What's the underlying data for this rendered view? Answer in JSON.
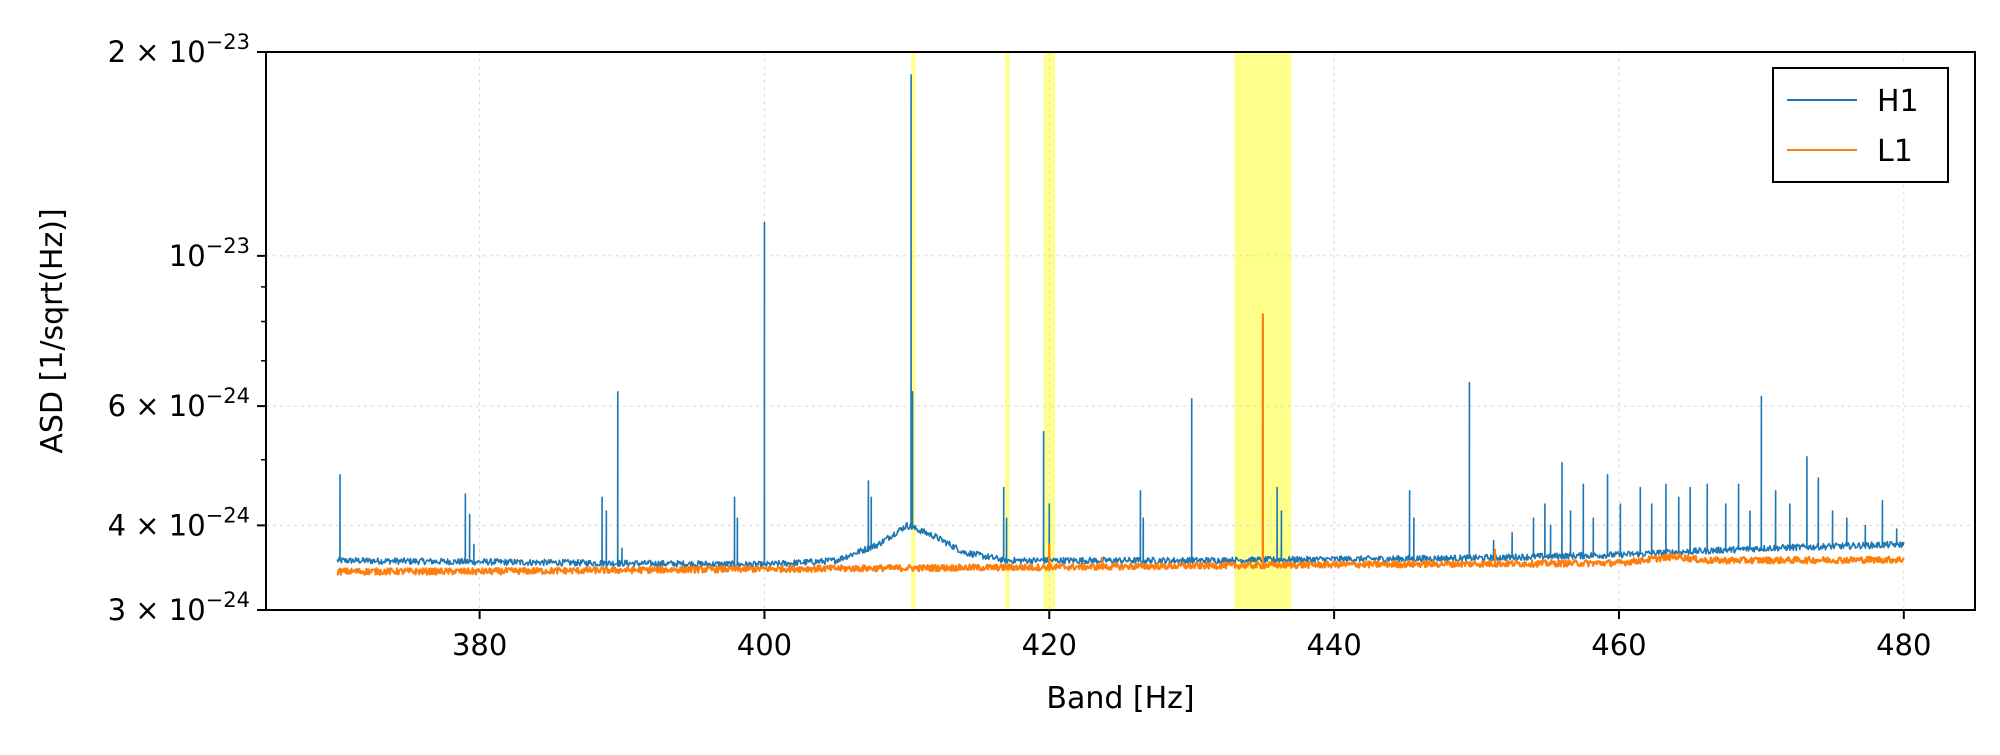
{
  "chart_data": {
    "type": "line",
    "xlabel": "Band [Hz]",
    "ylabel": "ASD [1/sqrt(Hz)]",
    "xlim": [
      365,
      485
    ],
    "ylim": [
      3e-24,
      2e-23
    ],
    "yscale": "log",
    "grid": true,
    "legend_position": "top-right",
    "x_ticks": [
      380,
      400,
      420,
      440,
      460,
      480
    ],
    "x_tick_labels": [
      "380",
      "400",
      "420",
      "440",
      "460",
      "480"
    ],
    "y_ticks": [
      {
        "value": 2e-23,
        "mantissa": "2",
        "times": "×",
        "base": "10",
        "exponent": "−23"
      },
      {
        "value": 1e-23,
        "mantissa": "",
        "times": "",
        "base": "10",
        "exponent": "−23"
      },
      {
        "value": 6e-24,
        "mantissa": "6",
        "times": "×",
        "base": "10",
        "exponent": "−24"
      },
      {
        "value": 4e-24,
        "mantissa": "4",
        "times": "×",
        "base": "10",
        "exponent": "−24"
      },
      {
        "value": 3e-24,
        "mantissa": "3",
        "times": "×",
        "base": "10",
        "exponent": "−24"
      }
    ],
    "y_minor_ticks": [
      5e-24,
      7e-24,
      8e-24,
      9e-24
    ],
    "highlight_bands": [
      {
        "x0": 410.3,
        "x1": 410.6
      },
      {
        "x0": 416.9,
        "x1": 417.2
      },
      {
        "x0": 419.6,
        "x1": 420.4
      },
      {
        "x0": 433.0,
        "x1": 437.0
      }
    ],
    "series": [
      {
        "name": "H1",
        "color": "#1f77b4",
        "x_range": [
          370,
          480
        ],
        "baseline": [
          [
            370,
            3.55e-24
          ],
          [
            400,
            3.5e-24
          ],
          [
            405,
            3.55e-24
          ],
          [
            408,
            3.75e-24
          ],
          [
            410,
            4e-24
          ],
          [
            412,
            3.85e-24
          ],
          [
            414,
            3.65e-24
          ],
          [
            417,
            3.55e-24
          ],
          [
            430,
            3.55e-24
          ],
          [
            450,
            3.58e-24
          ],
          [
            460,
            3.62e-24
          ],
          [
            470,
            3.7e-24
          ],
          [
            480,
            3.75e-24
          ]
        ],
        "peaks": [
          [
            370.2,
            4.75e-24
          ],
          [
            379.0,
            4.45e-24
          ],
          [
            379.3,
            4.15e-24
          ],
          [
            379.6,
            3.75e-24
          ],
          [
            388.6,
            4.4e-24
          ],
          [
            388.9,
            4.2e-24
          ],
          [
            389.7,
            6.3e-24
          ],
          [
            390.0,
            3.7e-24
          ],
          [
            397.9,
            4.4e-24
          ],
          [
            398.1,
            4.1e-24
          ],
          [
            400.0,
            1.12e-23
          ],
          [
            407.3,
            4.65e-24
          ],
          [
            407.5,
            4.4e-24
          ],
          [
            410.3,
            1.85e-23
          ],
          [
            410.4,
            6.3e-24
          ],
          [
            416.8,
            4.55e-24
          ],
          [
            417.0,
            4.1e-24
          ],
          [
            419.6,
            5.5e-24
          ],
          [
            420.0,
            4.3e-24
          ],
          [
            426.4,
            4.5e-24
          ],
          [
            426.6,
            4.1e-24
          ],
          [
            430.0,
            6.15e-24
          ],
          [
            435.0,
            4e-24
          ],
          [
            436.0,
            4.55e-24
          ],
          [
            436.3,
            4.2e-24
          ],
          [
            445.3,
            4.5e-24
          ],
          [
            445.6,
            4.1e-24
          ],
          [
            449.5,
            6.5e-24
          ],
          [
            451.2,
            3.8e-24
          ],
          [
            452.5,
            3.9e-24
          ],
          [
            454.0,
            4.1e-24
          ],
          [
            454.8,
            4.3e-24
          ],
          [
            455.2,
            4e-24
          ],
          [
            456.0,
            4.95e-24
          ],
          [
            456.6,
            4.2e-24
          ],
          [
            457.5,
            4.6e-24
          ],
          [
            458.2,
            4.1e-24
          ],
          [
            459.2,
            4.75e-24
          ],
          [
            460.1,
            4.3e-24
          ],
          [
            461.5,
            4.55e-24
          ],
          [
            462.3,
            4.3e-24
          ],
          [
            463.3,
            4.6e-24
          ],
          [
            464.2,
            4.4e-24
          ],
          [
            465.0,
            4.55e-24
          ],
          [
            466.2,
            4.6e-24
          ],
          [
            467.5,
            4.3e-24
          ],
          [
            468.4,
            4.6e-24
          ],
          [
            469.2,
            4.2e-24
          ],
          [
            470.0,
            6.2e-24
          ],
          [
            471.0,
            4.5e-24
          ],
          [
            472.0,
            4.3e-24
          ],
          [
            473.2,
            5.05e-24
          ],
          [
            474.0,
            4.7e-24
          ],
          [
            475.0,
            4.2e-24
          ],
          [
            476.0,
            4.1e-24
          ],
          [
            477.3,
            4e-24
          ],
          [
            478.5,
            4.35e-24
          ],
          [
            479.5,
            3.95e-24
          ]
        ]
      },
      {
        "name": "L1",
        "color": "#ff7f0e",
        "x_range": [
          370,
          480
        ],
        "baseline": [
          [
            370,
            3.42e-24
          ],
          [
            380,
            3.42e-24
          ],
          [
            400,
            3.45e-24
          ],
          [
            420,
            3.47e-24
          ],
          [
            440,
            3.5e-24
          ],
          [
            460,
            3.52e-24
          ],
          [
            464,
            3.6e-24
          ],
          [
            466,
            3.55e-24
          ],
          [
            480,
            3.56e-24
          ]
        ],
        "peaks": [
          [
            420.0,
            3.75e-24
          ],
          [
            423.7,
            3.58e-24
          ],
          [
            435.0,
            8.2e-24
          ],
          [
            451.3,
            3.68e-24
          ]
        ]
      }
    ]
  }
}
